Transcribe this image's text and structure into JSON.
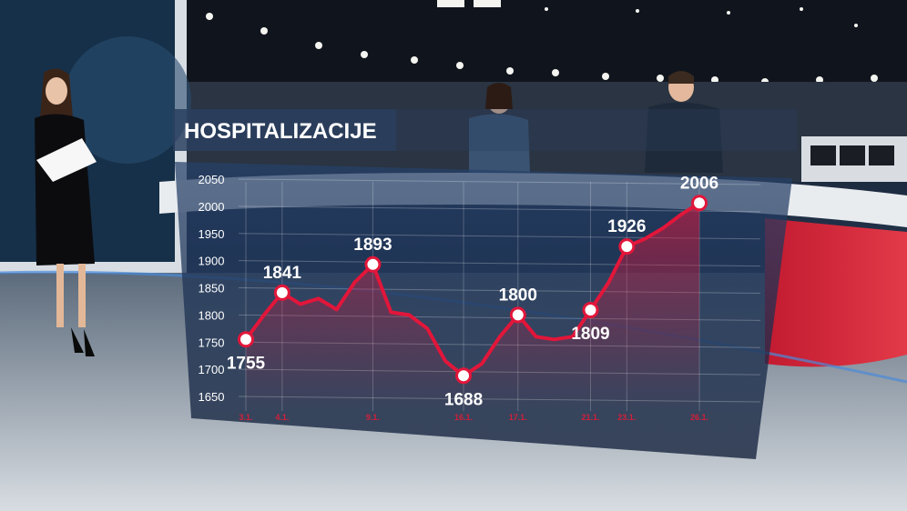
{
  "chart_data": {
    "type": "line",
    "title": "HOSPITALIZACIJE",
    "xlabel": "",
    "ylabel": "",
    "ylim": [
      1650,
      2050
    ],
    "yticks": [
      2050,
      2000,
      1950,
      1900,
      1850,
      1800,
      1750,
      1700,
      1650
    ],
    "grid": true,
    "x": [
      0,
      1,
      2,
      3,
      4,
      5,
      6,
      7,
      8,
      9,
      10,
      11,
      12,
      13,
      14,
      15,
      16,
      17,
      18,
      19,
      20,
      21,
      22,
      23,
      24,
      25
    ],
    "xtick_labels": [
      {
        "index": 0,
        "label": "3.1."
      },
      {
        "index": 2,
        "label": "4.1."
      },
      {
        "index": 7,
        "label": "9.1."
      },
      {
        "index": 12,
        "label": "16.1."
      },
      {
        "index": 15,
        "label": "17.1."
      },
      {
        "index": 19,
        "label": "21.1."
      },
      {
        "index": 21,
        "label": "23.1."
      },
      {
        "index": 25,
        "label": "26.1."
      }
    ],
    "series": [
      {
        "name": "",
        "values": [
          1755,
          1800,
          1841,
          1820,
          1830,
          1810,
          1860,
          1893,
          1805,
          1800,
          1775,
          1715,
          1688,
          1710,
          1760,
          1800,
          1760,
          1755,
          1760,
          1809,
          1860,
          1926,
          1940,
          1960,
          1985,
          2006
        ]
      }
    ],
    "data_labels": [
      {
        "index": 0,
        "text": "1755",
        "position": "below"
      },
      {
        "index": 2,
        "text": "1841",
        "position": "above"
      },
      {
        "index": 7,
        "text": "1893",
        "position": "above"
      },
      {
        "index": 12,
        "text": "1688",
        "position": "below"
      },
      {
        "index": 15,
        "text": "1800",
        "position": "above"
      },
      {
        "index": 19,
        "text": "1809",
        "position": "below"
      },
      {
        "index": 21,
        "text": "1926",
        "position": "above"
      },
      {
        "index": 25,
        "text": "2006",
        "position": "above"
      }
    ],
    "colors": {
      "line": "#e2163a",
      "marker_fill": "#ffffff",
      "marker_stroke": "#e2163a",
      "panel": "#1a2f4d",
      "tick_x": "#d21f3a",
      "tick_y": "#ffffff"
    }
  }
}
